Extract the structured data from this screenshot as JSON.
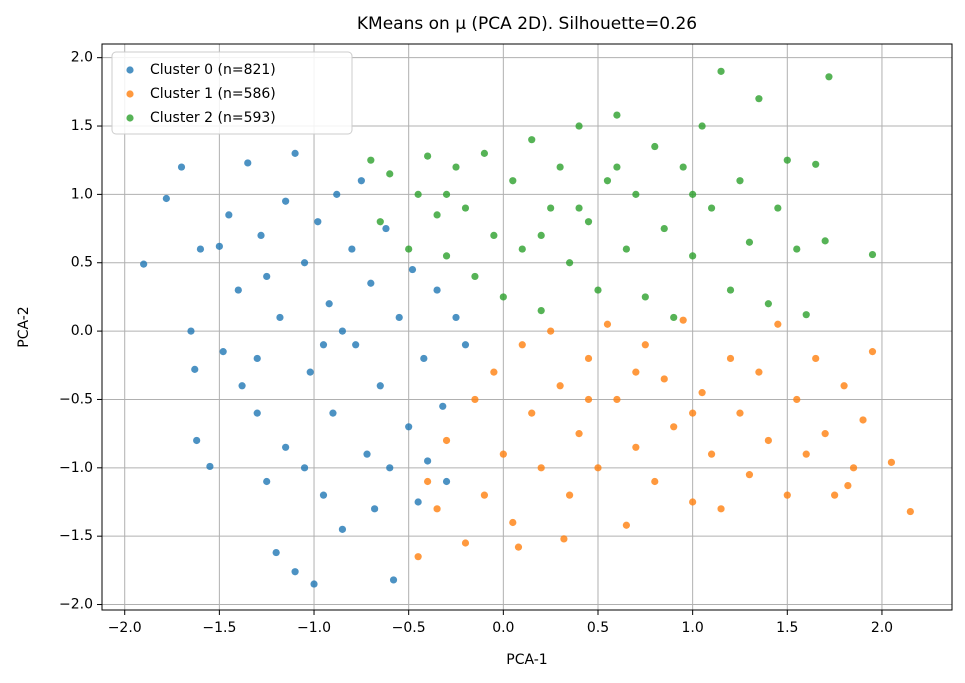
{
  "chart_data": {
    "type": "scatter",
    "title": "KMeans on μ (PCA 2D). Silhouette=0.26",
    "x_label": "PCA-1",
    "y_label": "PCA-2",
    "xlim": [
      -2.12,
      2.37
    ],
    "ylim": [
      -2.04,
      2.1
    ],
    "xticks": [
      {
        "value": -2,
        "label": "−2.0"
      },
      {
        "value": -1.5,
        "label": "−1.5"
      },
      {
        "value": -1,
        "label": "−1.0"
      },
      {
        "value": -0.5,
        "label": "−0.5"
      },
      {
        "value": 0,
        "label": "0.0"
      },
      0.5,
      {
        "value": 1,
        "label": "1.0"
      },
      1.5,
      {
        "value": 2,
        "label": "2.0"
      }
    ],
    "yticks": [
      {
        "value": -2,
        "label": "−2.0"
      },
      {
        "value": -1.5,
        "label": "−1.5"
      },
      {
        "value": -1,
        "label": "−1.0"
      },
      {
        "value": -0.5,
        "label": "−0.5"
      },
      {
        "value": 0,
        "label": "0.0"
      },
      0.5,
      {
        "value": 1,
        "label": "1.0"
      },
      1.5,
      {
        "value": 2,
        "label": "2.0"
      }
    ],
    "grid": true,
    "legend": "upper-left",
    "series": [
      {
        "name": "Cluster 0 (n=821)",
        "color": "#1f77b4",
        "x": [
          -1.9,
          -1.78,
          -1.7,
          -1.65,
          -1.63,
          -1.62,
          -1.55,
          -1.5,
          -1.45,
          -1.4,
          -1.38,
          -1.35,
          -1.3,
          -1.28,
          -1.25,
          -1.2,
          -1.18,
          -1.15,
          -1.1,
          -1.1,
          -1.05,
          -1.02,
          -1.0,
          -0.98,
          -0.95,
          -0.92,
          -0.9,
          -0.88,
          -0.85,
          -0.8,
          -0.78,
          -0.75,
          -0.72,
          -0.7,
          -0.68,
          -0.65,
          -0.62,
          -0.6,
          -0.58,
          -0.55,
          -0.5,
          -0.48,
          -0.45,
          -0.42,
          -0.4,
          -0.35,
          -0.32,
          -0.3,
          -0.25,
          -0.2,
          -1.48,
          -1.3,
          -1.15,
          -0.95,
          -1.6,
          -1.05,
          -0.85,
          -1.25
        ],
        "values": [
          0.49,
          0.97,
          1.2,
          0.0,
          -0.28,
          -0.8,
          -0.99,
          0.62,
          0.85,
          0.3,
          -0.4,
          1.23,
          -0.6,
          0.7,
          -1.1,
          -1.62,
          0.1,
          -0.85,
          1.3,
          -1.76,
          0.5,
          -0.3,
          -1.85,
          0.8,
          -1.2,
          0.2,
          -0.6,
          1.0,
          -1.45,
          0.6,
          -0.1,
          1.1,
          -0.9,
          0.35,
          -1.3,
          -0.4,
          0.75,
          -1.0,
          -1.82,
          0.1,
          -0.7,
          0.45,
          -1.25,
          -0.2,
          -0.95,
          0.3,
          -0.55,
          -1.1,
          0.1,
          -0.1,
          -0.15,
          -0.2,
          0.95,
          -0.1,
          0.6,
          -1.0,
          0.0,
          0.4
        ]
      },
      {
        "name": "Cluster 1 (n=586)",
        "color": "#ff7f0e",
        "x": [
          -0.45,
          -0.4,
          -0.35,
          -0.3,
          -0.2,
          -0.15,
          -0.1,
          -0.05,
          0.0,
          0.05,
          0.08,
          0.1,
          0.15,
          0.2,
          0.25,
          0.3,
          0.32,
          0.35,
          0.4,
          0.45,
          0.5,
          0.55,
          0.6,
          0.65,
          0.7,
          0.75,
          0.8,
          0.85,
          0.9,
          0.95,
          1.0,
          1.05,
          1.1,
          1.15,
          1.2,
          1.25,
          1.3,
          1.35,
          1.4,
          1.45,
          1.5,
          1.55,
          1.6,
          1.65,
          1.7,
          1.75,
          1.8,
          1.85,
          1.9,
          1.95,
          2.05,
          2.15,
          1.82,
          0.45,
          0.7,
          1.0
        ],
        "values": [
          -1.65,
          -1.1,
          -1.3,
          -0.8,
          -1.55,
          -0.5,
          -1.2,
          -0.3,
          -0.9,
          -1.4,
          -1.58,
          -0.1,
          -0.6,
          -1.0,
          0.0,
          -0.4,
          -1.52,
          -1.2,
          -0.75,
          -0.2,
          -1.0,
          0.05,
          -0.5,
          -1.42,
          -0.85,
          -0.1,
          -1.1,
          -0.35,
          -0.7,
          0.08,
          -1.25,
          -0.45,
          -0.9,
          -1.3,
          -0.2,
          -0.6,
          -1.05,
          -0.3,
          -0.8,
          0.05,
          -1.2,
          -0.5,
          -0.9,
          -0.2,
          -0.75,
          -1.2,
          -0.4,
          -1.0,
          -0.65,
          -0.15,
          -0.96,
          -1.32,
          -1.13,
          -0.5,
          -0.3,
          -0.6
        ]
      },
      {
        "name": "Cluster 2 (n=593)",
        "color": "#2ca02c",
        "x": [
          -0.7,
          -0.65,
          -0.6,
          -0.5,
          -0.45,
          -0.4,
          -0.35,
          -0.3,
          -0.25,
          -0.2,
          -0.15,
          -0.1,
          -0.05,
          0.0,
          0.05,
          0.1,
          0.15,
          0.2,
          0.25,
          0.3,
          0.35,
          0.4,
          0.45,
          0.5,
          0.55,
          0.6,
          0.65,
          0.7,
          0.75,
          0.8,
          0.85,
          0.9,
          0.95,
          1.0,
          1.05,
          1.1,
          1.15,
          1.2,
          1.25,
          1.3,
          1.35,
          1.4,
          1.45,
          1.5,
          1.55,
          1.6,
          1.65,
          1.72,
          1.7,
          1.95,
          0.6,
          0.2,
          -0.3,
          1.0,
          0.4
        ],
        "values": [
          1.25,
          0.8,
          1.15,
          0.6,
          1.0,
          1.28,
          0.85,
          0.55,
          1.2,
          0.9,
          0.4,
          1.3,
          0.7,
          0.25,
          1.1,
          0.6,
          1.4,
          0.15,
          0.9,
          1.2,
          0.5,
          1.5,
          0.8,
          0.3,
          1.1,
          1.58,
          0.6,
          1.0,
          0.25,
          1.35,
          0.75,
          0.1,
          1.2,
          0.55,
          1.5,
          0.9,
          1.9,
          0.3,
          1.1,
          0.65,
          1.7,
          0.2,
          0.9,
          1.25,
          0.6,
          0.12,
          1.22,
          1.86,
          0.66,
          0.56,
          1.2,
          0.7,
          1.0,
          1.0,
          0.9
        ]
      }
    ]
  }
}
